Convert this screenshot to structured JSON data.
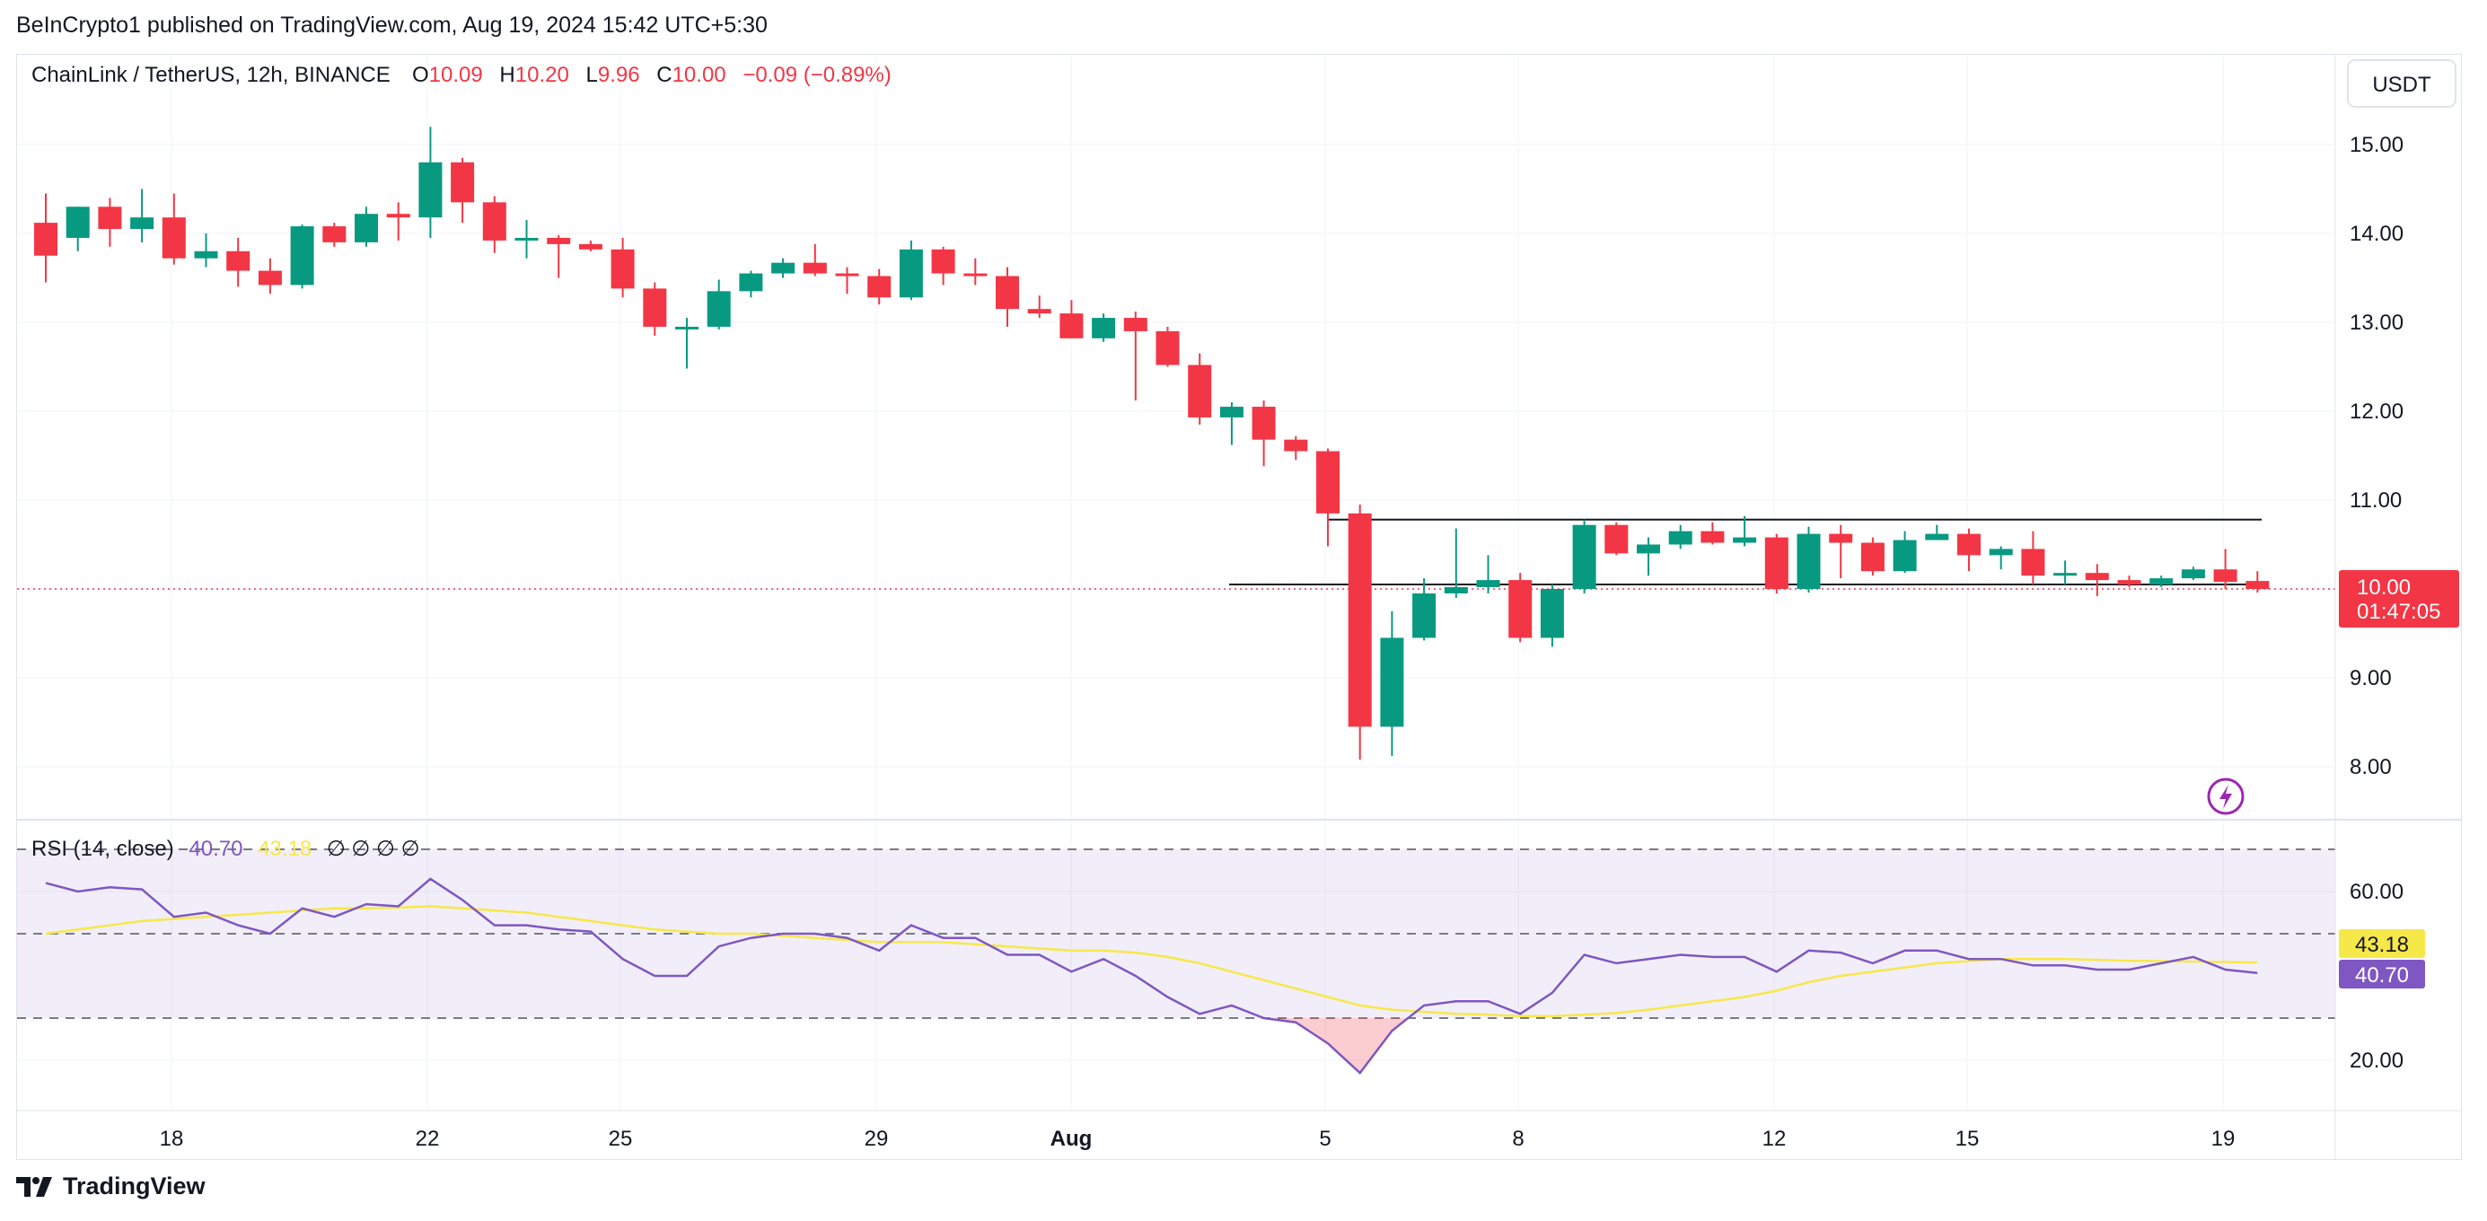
{
  "header": {
    "published": "BeInCrypto1 published on TradingView.com, Aug 19, 2024 15:42 UTC+5:30"
  },
  "legend": {
    "symbol": "ChainLink / TetherUS, 12h, BINANCE",
    "o_label": "O",
    "o_value": "10.09",
    "h_label": "H",
    "h_value": "10.20",
    "l_label": "L",
    "l_value": "9.96",
    "c_label": "C",
    "c_value": "10.00",
    "change": "−0.09 (−0.89%)"
  },
  "currency_button": "USDT",
  "price_axis": {
    "ticks": [
      "15.00",
      "14.00",
      "13.00",
      "12.00",
      "11.00",
      "9.00",
      "8.00"
    ]
  },
  "last_price": {
    "value": "10.00",
    "countdown": "01:47:05"
  },
  "rsi": {
    "label": "RSI (14, close)",
    "value": "40.70",
    "ma_value": "43.18",
    "extra": "∅ ∅ ∅ ∅",
    "ticks": [
      "60.00",
      "20.00"
    ],
    "upper_band": 70,
    "middle_band": 50,
    "lower_band": 30
  },
  "time_axis": {
    "labels": [
      "18",
      "22",
      "25",
      "29",
      "Aug",
      "5",
      "8",
      "12",
      "15",
      "19"
    ]
  },
  "footer": {
    "brand": "TradingView"
  },
  "colors": {
    "up": "#089981",
    "down": "#f23645",
    "rsi_line": "#7e57c2",
    "rsi_ma": "#f7e84a",
    "band_fill": "#7e57c2"
  },
  "chart_data": [
    {
      "type": "candlestick",
      "title": "ChainLink / TetherUS, 12h, BINANCE",
      "ylim": [
        7.4,
        15.8
      ],
      "support_level": 10.05,
      "resistance_level": 10.78,
      "candles": [
        {
          "o": 14.12,
          "h": 14.45,
          "l": 13.45,
          "c": 13.75
        },
        {
          "o": 13.95,
          "h": 14.3,
          "l": 13.8,
          "c": 14.3
        },
        {
          "o": 14.3,
          "h": 14.4,
          "l": 13.85,
          "c": 14.05
        },
        {
          "o": 14.05,
          "h": 14.5,
          "l": 13.9,
          "c": 14.18
        },
        {
          "o": 14.18,
          "h": 14.45,
          "l": 13.65,
          "c": 13.72
        },
        {
          "o": 13.72,
          "h": 14.0,
          "l": 13.62,
          "c": 13.8
        },
        {
          "o": 13.8,
          "h": 13.95,
          "l": 13.4,
          "c": 13.58
        },
        {
          "o": 13.58,
          "h": 13.72,
          "l": 13.32,
          "c": 13.42
        },
        {
          "o": 13.42,
          "h": 14.1,
          "l": 13.38,
          "c": 14.08
        },
        {
          "o": 14.08,
          "h": 14.12,
          "l": 13.85,
          "c": 13.9
        },
        {
          "o": 13.9,
          "h": 14.3,
          "l": 13.85,
          "c": 14.22
        },
        {
          "o": 14.22,
          "h": 14.35,
          "l": 13.92,
          "c": 14.18
        },
        {
          "o": 14.18,
          "h": 15.2,
          "l": 13.95,
          "c": 14.8
        },
        {
          "o": 14.8,
          "h": 14.85,
          "l": 14.12,
          "c": 14.35
        },
        {
          "o": 14.35,
          "h": 14.42,
          "l": 13.78,
          "c": 13.92
        },
        {
          "o": 13.92,
          "h": 14.15,
          "l": 13.72,
          "c": 13.95
        },
        {
          "o": 13.95,
          "h": 13.98,
          "l": 13.5,
          "c": 13.88
        },
        {
          "o": 13.88,
          "h": 13.92,
          "l": 13.8,
          "c": 13.82
        },
        {
          "o": 13.82,
          "h": 13.95,
          "l": 13.28,
          "c": 13.38
        },
        {
          "o": 13.38,
          "h": 13.45,
          "l": 12.85,
          "c": 12.95
        },
        {
          "o": 12.95,
          "h": 13.05,
          "l": 12.48,
          "c": 12.95
        },
        {
          "o": 12.95,
          "h": 13.48,
          "l": 12.92,
          "c": 13.35
        },
        {
          "o": 13.35,
          "h": 13.58,
          "l": 13.28,
          "c": 13.55
        },
        {
          "o": 13.55,
          "h": 13.72,
          "l": 13.5,
          "c": 13.67
        },
        {
          "o": 13.67,
          "h": 13.88,
          "l": 13.52,
          "c": 13.55
        },
        {
          "o": 13.55,
          "h": 13.62,
          "l": 13.32,
          "c": 13.52
        },
        {
          "o": 13.52,
          "h": 13.6,
          "l": 13.2,
          "c": 13.28
        },
        {
          "o": 13.28,
          "h": 13.92,
          "l": 13.25,
          "c": 13.82
        },
        {
          "o": 13.82,
          "h": 13.85,
          "l": 13.42,
          "c": 13.55
        },
        {
          "o": 13.55,
          "h": 13.72,
          "l": 13.42,
          "c": 13.52
        },
        {
          "o": 13.52,
          "h": 13.62,
          "l": 12.95,
          "c": 13.15
        },
        {
          "o": 13.15,
          "h": 13.3,
          "l": 13.05,
          "c": 13.1
        },
        {
          "o": 13.1,
          "h": 13.25,
          "l": 12.82,
          "c": 12.82
        },
        {
          "o": 12.82,
          "h": 13.1,
          "l": 12.78,
          "c": 13.05
        },
        {
          "o": 13.05,
          "h": 13.12,
          "l": 12.12,
          "c": 12.9
        },
        {
          "o": 12.9,
          "h": 12.95,
          "l": 12.5,
          "c": 12.52
        },
        {
          "o": 12.52,
          "h": 12.65,
          "l": 11.85,
          "c": 11.93
        },
        {
          "o": 11.93,
          "h": 12.1,
          "l": 11.62,
          "c": 12.05
        },
        {
          "o": 12.05,
          "h": 12.12,
          "l": 11.38,
          "c": 11.68
        },
        {
          "o": 11.68,
          "h": 11.72,
          "l": 11.45,
          "c": 11.55
        },
        {
          "o": 11.55,
          "h": 11.58,
          "l": 10.48,
          "c": 10.85
        },
        {
          "o": 10.85,
          "h": 10.95,
          "l": 8.08,
          "c": 8.45
        },
        {
          "o": 8.45,
          "h": 9.75,
          "l": 8.12,
          "c": 9.45
        },
        {
          "o": 9.45,
          "h": 10.12,
          "l": 9.42,
          "c": 9.95
        },
        {
          "o": 9.95,
          "h": 10.68,
          "l": 9.9,
          "c": 10.02
        },
        {
          "o": 10.02,
          "h": 10.38,
          "l": 9.95,
          "c": 10.1
        },
        {
          "o": 10.1,
          "h": 10.18,
          "l": 9.4,
          "c": 9.45
        },
        {
          "o": 9.45,
          "h": 10.05,
          "l": 9.35,
          "c": 10.0
        },
        {
          "o": 10.0,
          "h": 10.78,
          "l": 9.95,
          "c": 10.72
        },
        {
          "o": 10.72,
          "h": 10.75,
          "l": 10.38,
          "c": 10.4
        },
        {
          "o": 10.4,
          "h": 10.58,
          "l": 10.15,
          "c": 10.5
        },
        {
          "o": 10.5,
          "h": 10.72,
          "l": 10.45,
          "c": 10.65
        },
        {
          "o": 10.65,
          "h": 10.75,
          "l": 10.5,
          "c": 10.52
        },
        {
          "o": 10.52,
          "h": 10.82,
          "l": 10.48,
          "c": 10.58
        },
        {
          "o": 10.58,
          "h": 10.62,
          "l": 9.95,
          "c": 10.0
        },
        {
          "o": 10.0,
          "h": 10.7,
          "l": 9.96,
          "c": 10.62
        },
        {
          "o": 10.62,
          "h": 10.72,
          "l": 10.12,
          "c": 10.52
        },
        {
          "o": 10.52,
          "h": 10.58,
          "l": 10.15,
          "c": 10.2
        },
        {
          "o": 10.2,
          "h": 10.65,
          "l": 10.18,
          "c": 10.55
        },
        {
          "o": 10.55,
          "h": 10.72,
          "l": 10.55,
          "c": 10.62
        },
        {
          "o": 10.62,
          "h": 10.68,
          "l": 10.2,
          "c": 10.38
        },
        {
          "o": 10.38,
          "h": 10.48,
          "l": 10.22,
          "c": 10.45
        },
        {
          "o": 10.45,
          "h": 10.65,
          "l": 10.05,
          "c": 10.15
        },
        {
          "o": 10.15,
          "h": 10.32,
          "l": 10.05,
          "c": 10.18
        },
        {
          "o": 10.18,
          "h": 10.28,
          "l": 9.92,
          "c": 10.1
        },
        {
          "o": 10.1,
          "h": 10.15,
          "l": 10.02,
          "c": 10.05
        },
        {
          "o": 10.05,
          "h": 10.15,
          "l": 10.02,
          "c": 10.12
        },
        {
          "o": 10.12,
          "h": 10.25,
          "l": 10.1,
          "c": 10.22
        },
        {
          "o": 10.22,
          "h": 10.45,
          "l": 10.0,
          "c": 10.08
        },
        {
          "o": 10.09,
          "h": 10.2,
          "l": 9.96,
          "c": 10.0
        }
      ]
    },
    {
      "type": "line",
      "title": "RSI (14, close)",
      "ylim": [
        10,
        80
      ],
      "series": [
        {
          "name": "RSI",
          "values": [
            62,
            60,
            61,
            60.5,
            54,
            55,
            52,
            50,
            56,
            54,
            57,
            56.5,
            63,
            58,
            52,
            52,
            51,
            50.5,
            44,
            40,
            40,
            47,
            49,
            50,
            50,
            49,
            46,
            52,
            49,
            49,
            45,
            45,
            41,
            44,
            40,
            35,
            31,
            33,
            30,
            29,
            24,
            17,
            27,
            33,
            34,
            34,
            31,
            36,
            45,
            43,
            44,
            45,
            44.5,
            44.5,
            41,
            46,
            45.5,
            43,
            46,
            46,
            44,
            44,
            42.5,
            42.5,
            41.5,
            41.5,
            43,
            44.5,
            41.5,
            40.7
          ]
        },
        {
          "name": "RSI-based MA",
          "values": [
            50,
            51,
            52,
            53,
            53.5,
            54,
            54.5,
            55,
            55.5,
            56,
            56,
            56.2,
            56.5,
            56,
            55.5,
            55,
            54,
            53,
            52,
            51,
            50.5,
            50,
            50,
            49.5,
            49,
            48.5,
            48,
            48,
            48,
            47.5,
            47,
            46.5,
            46,
            46,
            45.5,
            44.5,
            43,
            41,
            39,
            37,
            35,
            33,
            32,
            31.5,
            31,
            30.8,
            30.5,
            30.5,
            30.8,
            31.2,
            32,
            33,
            34,
            35,
            36.5,
            38.5,
            40,
            41,
            42,
            43,
            43.5,
            44,
            44,
            44,
            43.8,
            43.6,
            43.5,
            43.4,
            43.3,
            43.18
          ]
        }
      ]
    }
  ]
}
